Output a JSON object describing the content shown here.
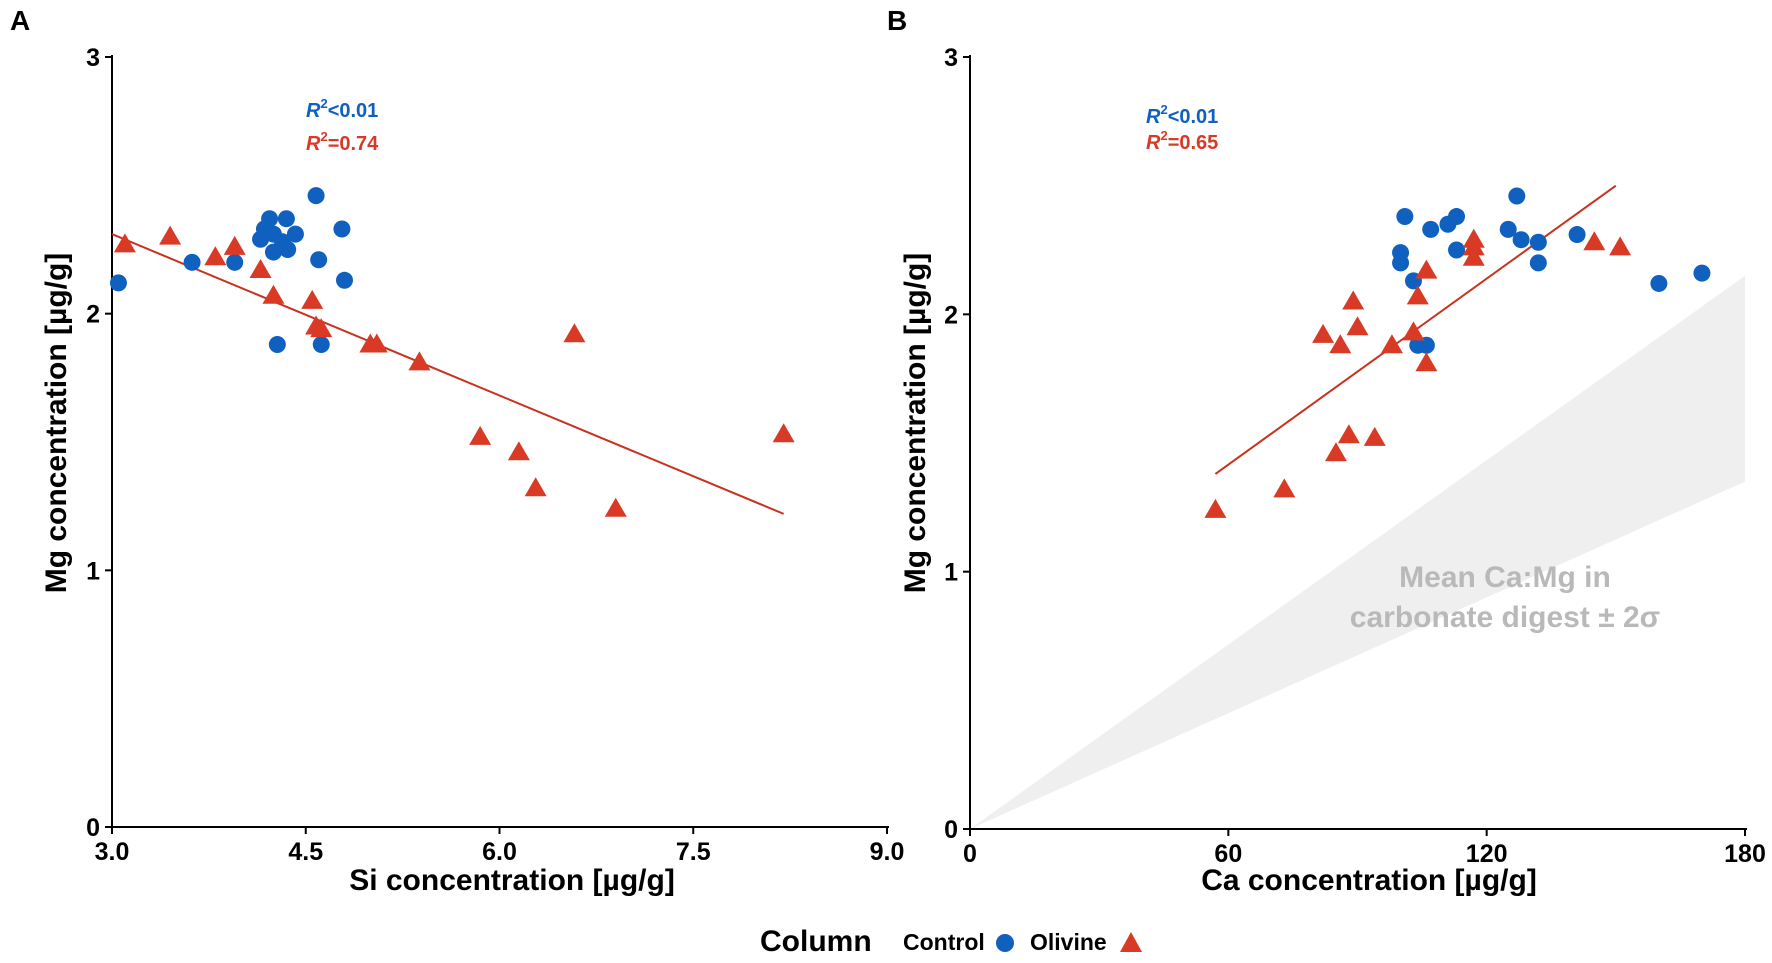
{
  "colors": {
    "control": "#1060c0",
    "olivine": "#d93a26",
    "fit_line": "#c8321f",
    "shade": "#efefef",
    "shade_text": "#b9b9b9"
  },
  "legend": {
    "title": "Column",
    "items": [
      {
        "label": "Control",
        "shape": "circle-icon",
        "series": "control"
      },
      {
        "label": "Olivine",
        "shape": "triangle-icon",
        "series": "olivine"
      }
    ]
  },
  "chart_data": [
    {
      "panel": "A",
      "type": "scatter",
      "xlabel": "Si concentration [µg/g]",
      "ylabel": "Mg concentration [µg/g]",
      "xlim": [
        3.0,
        9.0
      ],
      "ylim": [
        0,
        3
      ],
      "xticks": [
        3.0,
        4.5,
        6.0,
        7.5,
        9.0
      ],
      "xtick_labels": [
        "3.0",
        "4.5",
        "6.0",
        "7.5",
        "9.0"
      ],
      "yticks": [
        0,
        1,
        2,
        3
      ],
      "ytick_labels": [
        "0",
        "1",
        "2",
        "3"
      ],
      "annotations": {
        "control_r2": {
          "prefix": "R",
          "sup": "2",
          "text": "<0.01"
        },
        "olivine_r2": {
          "prefix": "R",
          "sup": "2",
          "text": "=0.74"
        }
      },
      "fit_line": {
        "series": "olivine",
        "x": [
          3.0,
          8.2
        ],
        "y": [
          2.31,
          1.22
        ]
      },
      "series": [
        {
          "name": "Control",
          "key": "control",
          "marker": "circle",
          "points": [
            [
              3.05,
              2.12
            ],
            [
              3.62,
              2.2
            ],
            [
              3.95,
              2.2
            ],
            [
              4.15,
              2.29
            ],
            [
              4.18,
              2.33
            ],
            [
              4.22,
              2.37
            ],
            [
              4.25,
              2.24
            ],
            [
              4.25,
              2.31
            ],
            [
              4.28,
              1.88
            ],
            [
              4.32,
              2.28
            ],
            [
              4.35,
              2.37
            ],
            [
              4.36,
              2.25
            ],
            [
              4.42,
              2.31
            ],
            [
              4.58,
              2.46
            ],
            [
              4.6,
              2.21
            ],
            [
              4.62,
              1.88
            ],
            [
              4.78,
              2.33
            ],
            [
              4.8,
              2.13
            ]
          ]
        },
        {
          "name": "Olivine",
          "key": "olivine",
          "marker": "triangle",
          "points": [
            [
              3.1,
              2.27
            ],
            [
              3.45,
              2.3
            ],
            [
              3.8,
              2.22
            ],
            [
              3.95,
              2.26
            ],
            [
              4.15,
              2.17
            ],
            [
              4.25,
              2.07
            ],
            [
              4.55,
              2.05
            ],
            [
              4.58,
              1.95
            ],
            [
              4.62,
              1.94
            ],
            [
              5.0,
              1.88
            ],
            [
              5.05,
              1.88
            ],
            [
              5.38,
              1.81
            ],
            [
              5.85,
              1.52
            ],
            [
              6.15,
              1.46
            ],
            [
              6.28,
              1.32
            ],
            [
              6.58,
              1.92
            ],
            [
              6.9,
              1.24
            ],
            [
              8.2,
              1.53
            ]
          ]
        }
      ]
    },
    {
      "panel": "B",
      "type": "scatter",
      "xlabel": "Ca concentration [µg/g]",
      "ylabel": "Mg concentration [µg/g]",
      "xlim": [
        0,
        180
      ],
      "ylim": [
        0,
        3
      ],
      "xticks": [
        0,
        60,
        120,
        180
      ],
      "xtick_labels": [
        "0",
        "60",
        "120",
        "180"
      ],
      "yticks": [
        0,
        1,
        2,
        3
      ],
      "ytick_labels": [
        "0",
        "1",
        "2",
        "3"
      ],
      "annotations": {
        "control_r2": {
          "prefix": "R",
          "sup": "2",
          "text": "<0.01"
        },
        "olivine_r2": {
          "prefix": "R",
          "sup": "2",
          "text": "=0.65"
        }
      },
      "shade_label": [
        "Mean Ca:Mg in",
        "carbonate digest ± 2σ"
      ],
      "shade_band": {
        "x": [
          0,
          180
        ],
        "y_lower": [
          0,
          1.35
        ],
        "y_upper": [
          0,
          2.15
        ]
      },
      "fit_line": {
        "series": "olivine",
        "x": [
          57,
          150
        ],
        "y": [
          1.38,
          2.5
        ]
      },
      "series": [
        {
          "name": "Control",
          "key": "control",
          "marker": "circle",
          "points": [
            [
              100,
              2.2
            ],
            [
              100,
              2.24
            ],
            [
              101,
              2.38
            ],
            [
              103,
              2.13
            ],
            [
              104,
              1.88
            ],
            [
              106,
              1.88
            ],
            [
              107,
              2.33
            ],
            [
              111,
              2.35
            ],
            [
              113,
              2.38
            ],
            [
              113,
              2.25
            ],
            [
              125,
              2.33
            ],
            [
              127,
              2.46
            ],
            [
              128,
              2.29
            ],
            [
              132,
              2.2
            ],
            [
              132,
              2.28
            ],
            [
              141,
              2.31
            ],
            [
              160,
              2.12
            ],
            [
              170,
              2.16
            ]
          ]
        },
        {
          "name": "Olivine",
          "key": "olivine",
          "marker": "triangle",
          "points": [
            [
              57,
              1.24
            ],
            [
              73,
              1.32
            ],
            [
              82,
              1.92
            ],
            [
              85,
              1.46
            ],
            [
              86,
              1.88
            ],
            [
              88,
              1.53
            ],
            [
              89,
              2.05
            ],
            [
              90,
              1.95
            ],
            [
              94,
              1.52
            ],
            [
              98,
              1.88
            ],
            [
              103,
              1.93
            ],
            [
              104,
              2.07
            ],
            [
              106,
              2.17
            ],
            [
              106,
              1.81
            ],
            [
              117,
              2.22
            ],
            [
              117,
              2.26
            ],
            [
              117,
              2.29
            ],
            [
              145,
              2.28
            ],
            [
              151,
              2.26
            ]
          ]
        }
      ]
    }
  ]
}
